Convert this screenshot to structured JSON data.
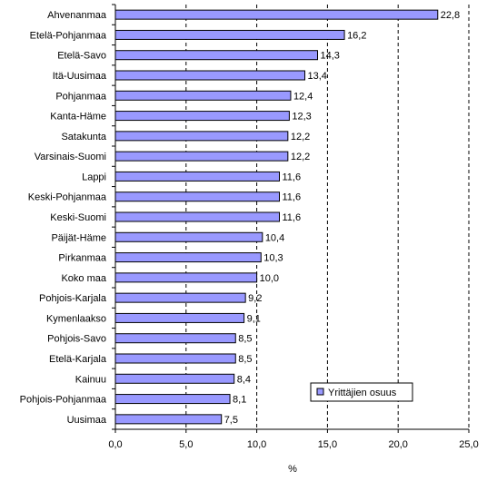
{
  "chart_data": {
    "type": "bar",
    "orientation": "horizontal",
    "categories": [
      "Ahvenanmaa",
      "Etelä-Pohjanmaa",
      "Etelä-Savo",
      "Itä-Uusimaa",
      "Pohjanmaa",
      "Kanta-Häme",
      "Satakunta",
      "Varsinais-Suomi",
      "Lappi",
      "Keski-Pohjanmaa",
      "Keski-Suomi",
      "Päijät-Häme",
      "Pirkanmaa",
      "Koko maa",
      "Pohjois-Karjala",
      "Kymenlaakso",
      "Pohjois-Savo",
      "Etelä-Karjala",
      "Kainuu",
      "Pohjois-Pohjanmaa",
      "Uusimaa"
    ],
    "series": [
      {
        "name": "Yrittäjien osuus",
        "values": [
          22.8,
          16.2,
          14.3,
          13.4,
          12.4,
          12.3,
          12.2,
          12.2,
          11.6,
          11.6,
          11.6,
          10.4,
          10.3,
          10.0,
          9.2,
          9.1,
          8.5,
          8.5,
          8.4,
          8.1,
          7.5
        ],
        "value_labels": [
          "22,8",
          "16,2",
          "14,3",
          "13,4",
          "12,4",
          "12,3",
          "12,2",
          "12,2",
          "11,6",
          "11,6",
          "11,6",
          "10,4",
          "10,3",
          "10,0",
          "9,2",
          "9,1",
          "8,5",
          "8,5",
          "8,4",
          "8,1",
          "7,5"
        ],
        "color": "#9999ff"
      }
    ],
    "xticks": [
      0,
      5,
      10,
      15,
      20,
      25
    ],
    "xtick_labels": [
      "0,0",
      "5,0",
      "10,0",
      "15,0",
      "20,0",
      "25,0"
    ],
    "xlim": [
      0,
      25
    ],
    "xlabel": "%",
    "ylabel": "",
    "title": "",
    "grid": "vertical dashed",
    "legend_position": "bottom-right"
  }
}
